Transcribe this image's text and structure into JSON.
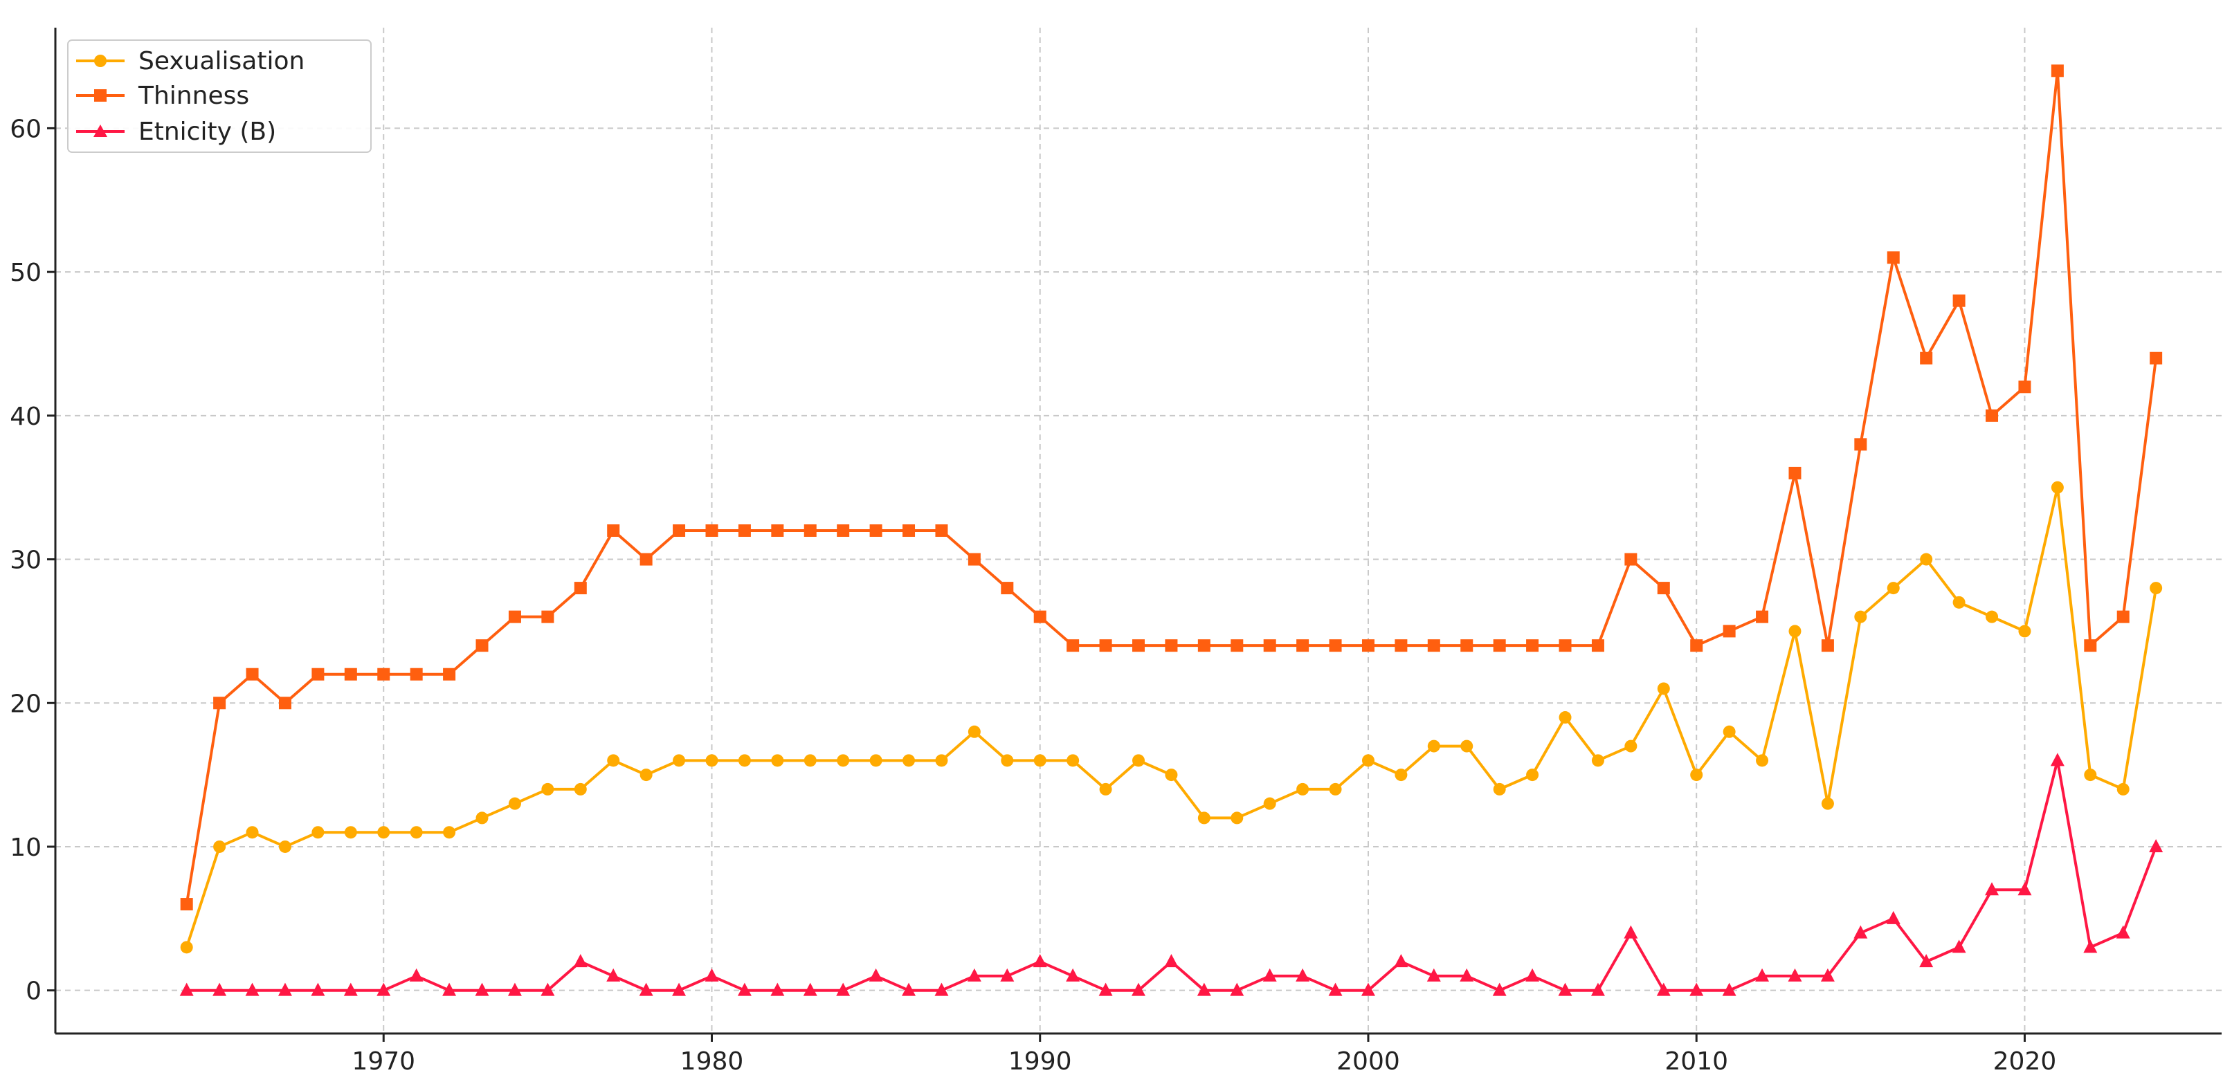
{
  "chart_data": {
    "type": "line",
    "title": "",
    "xlabel": "",
    "ylabel": "",
    "xlim": [
      1960,
      2026
    ],
    "ylim": [
      -3,
      67
    ],
    "x_ticks": [
      1970,
      1980,
      1990,
      2000,
      2010,
      2020
    ],
    "y_ticks": [
      0,
      10,
      20,
      30,
      40,
      50,
      60
    ],
    "grid": true,
    "legend_position": "top-left",
    "x": [
      1964,
      1965,
      1966,
      1967,
      1968,
      1969,
      1970,
      1971,
      1972,
      1973,
      1974,
      1975,
      1976,
      1977,
      1978,
      1979,
      1980,
      1981,
      1982,
      1983,
      1984,
      1985,
      1986,
      1987,
      1988,
      1989,
      1990,
      1991,
      1992,
      1993,
      1994,
      1995,
      1996,
      1997,
      1998,
      1999,
      2000,
      2001,
      2002,
      2003,
      2004,
      2005,
      2006,
      2007,
      2008,
      2009,
      2010,
      2011,
      2012,
      2013,
      2014,
      2015,
      2016,
      2017,
      2018,
      2019,
      2020,
      2021,
      2022,
      2023,
      2024
    ],
    "series": [
      {
        "name": "Sexualisation",
        "color": "#FFAA00",
        "marker": "circle",
        "values": [
          3,
          10,
          11,
          10,
          11,
          11,
          11,
          11,
          11,
          12,
          13,
          14,
          14,
          16,
          15,
          16,
          16,
          16,
          16,
          16,
          16,
          16,
          16,
          16,
          18,
          16,
          16,
          16,
          14,
          16,
          15,
          12,
          12,
          13,
          14,
          14,
          16,
          15,
          17,
          17,
          14,
          15,
          19,
          16,
          17,
          21,
          15,
          18,
          16,
          25,
          13,
          26,
          28,
          30,
          27,
          26,
          25,
          35,
          15,
          14,
          28
        ]
      },
      {
        "name": "Thinness",
        "color": "#FF5F0F",
        "marker": "square",
        "values": [
          6,
          20,
          22,
          20,
          22,
          22,
          22,
          22,
          22,
          24,
          26,
          26,
          28,
          32,
          30,
          32,
          32,
          32,
          32,
          32,
          32,
          32,
          32,
          32,
          30,
          28,
          26,
          24,
          24,
          24,
          24,
          24,
          24,
          24,
          24,
          24,
          24,
          24,
          24,
          24,
          24,
          24,
          24,
          24,
          30,
          28,
          24,
          25,
          26,
          36,
          24,
          38,
          51,
          44,
          48,
          40,
          42,
          64,
          24,
          26,
          44
        ]
      },
      {
        "name": "Etnicity (B)",
        "color": "#FF1744",
        "marker": "triangle",
        "values": [
          0,
          0,
          0,
          0,
          0,
          0,
          0,
          1,
          0,
          0,
          0,
          0,
          2,
          1,
          0,
          0,
          1,
          0,
          0,
          0,
          0,
          1,
          0,
          0,
          1,
          1,
          2,
          1,
          0,
          0,
          2,
          0,
          0,
          1,
          1,
          0,
          0,
          2,
          1,
          1,
          0,
          1,
          0,
          0,
          4,
          0,
          0,
          0,
          1,
          1,
          1,
          4,
          5,
          2,
          3,
          7,
          7,
          16,
          3,
          4,
          10
        ]
      }
    ]
  }
}
